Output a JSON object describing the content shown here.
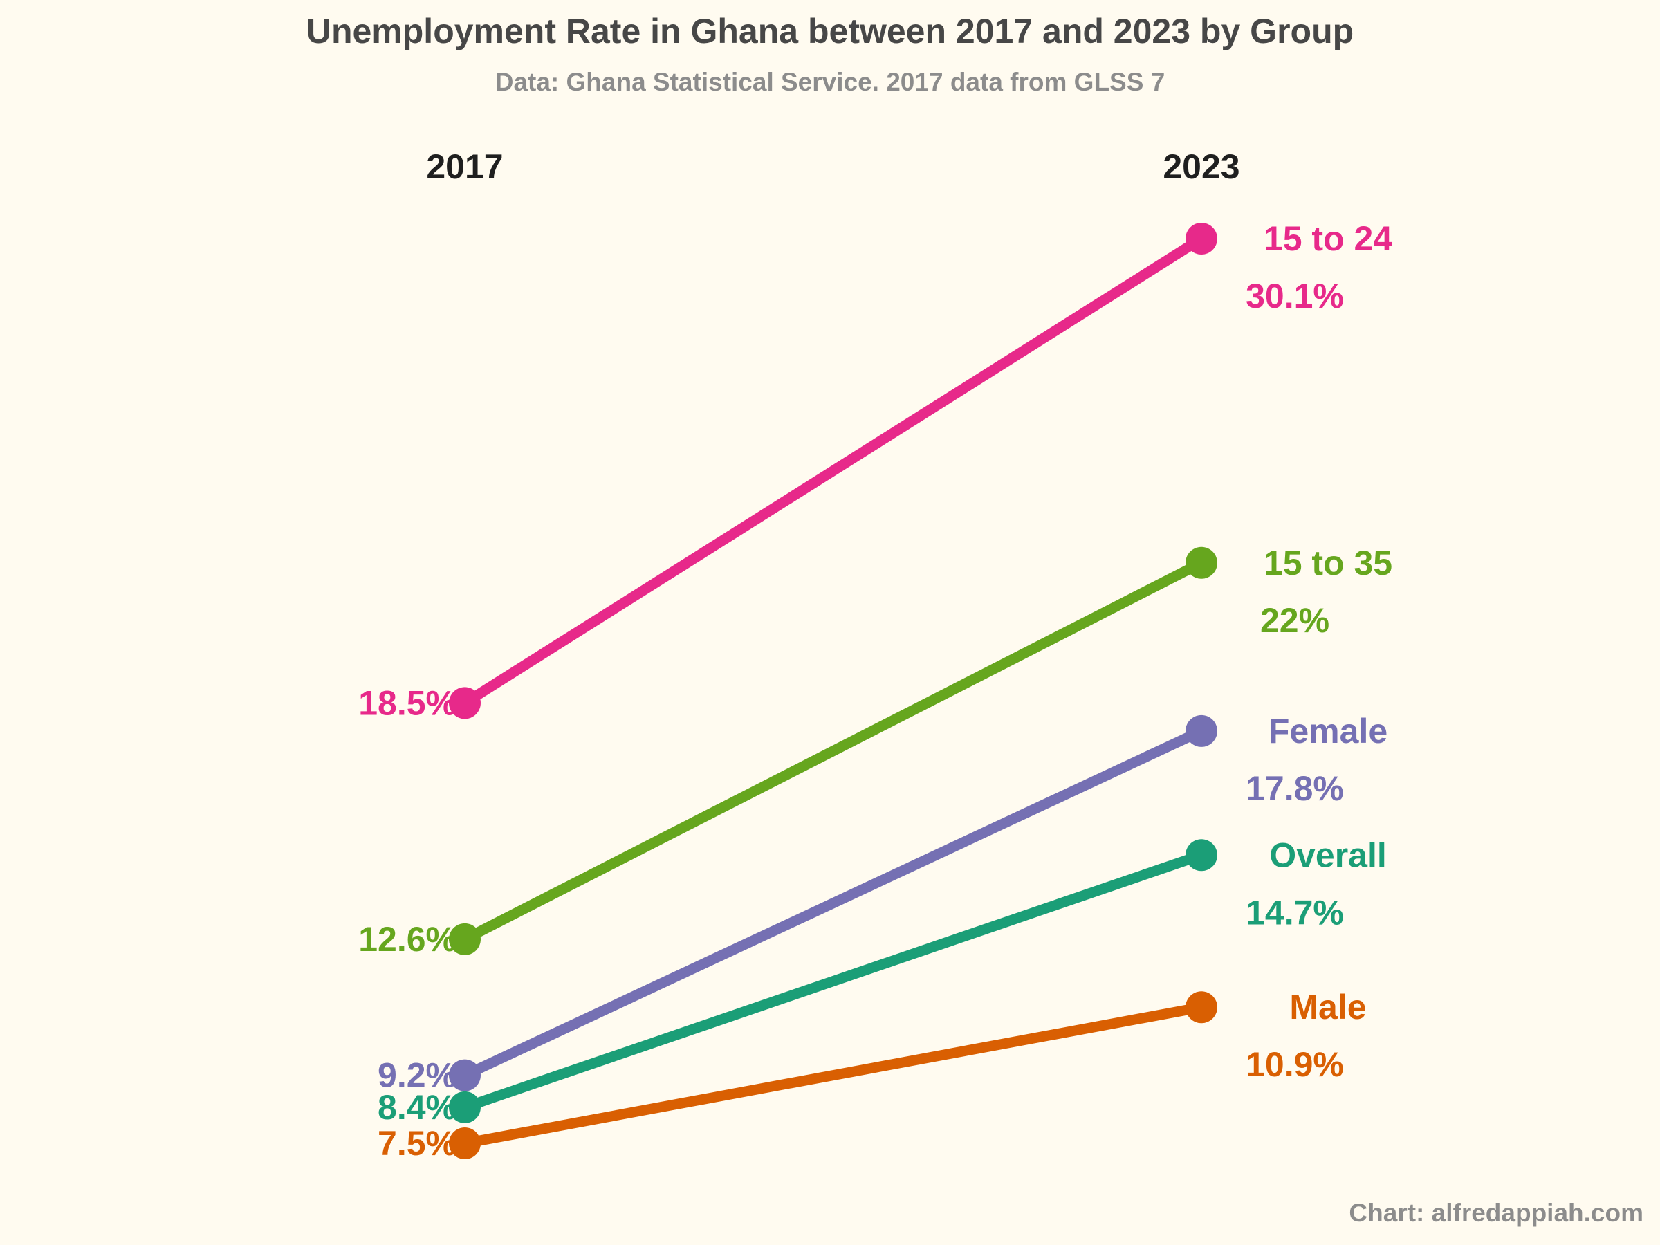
{
  "chart_data": {
    "type": "line",
    "title": "Unemployment Rate in Ghana between 2017 and 2023 by Group",
    "subtitle": "Data: Ghana Statistical Service. 2017 data from GLSS 7",
    "caption": "Chart: alfredappiah.com",
    "x": [
      "2017",
      "2023"
    ],
    "ylim": [
      7.5,
      30.1
    ],
    "grid": false,
    "series": [
      {
        "name": "15 to 24",
        "values": [
          18.5,
          30.1
        ],
        "labels": [
          "18.5%",
          "30.1%"
        ],
        "color": "#e7298a"
      },
      {
        "name": "15 to 35",
        "values": [
          12.6,
          22.0
        ],
        "labels": [
          "12.6%",
          "22%"
        ],
        "color": "#66a61e"
      },
      {
        "name": "Female",
        "values": [
          9.2,
          17.8
        ],
        "labels": [
          "9.2%",
          "17.8%"
        ],
        "color": "#7570b3"
      },
      {
        "name": "Overall",
        "values": [
          8.4,
          14.7
        ],
        "labels": [
          "8.4%",
          "14.7%"
        ],
        "color": "#1b9e77"
      },
      {
        "name": "Male",
        "values": [
          7.5,
          10.9
        ],
        "labels": [
          "7.5%",
          "10.9%"
        ],
        "color": "#d95f02"
      }
    ]
  }
}
